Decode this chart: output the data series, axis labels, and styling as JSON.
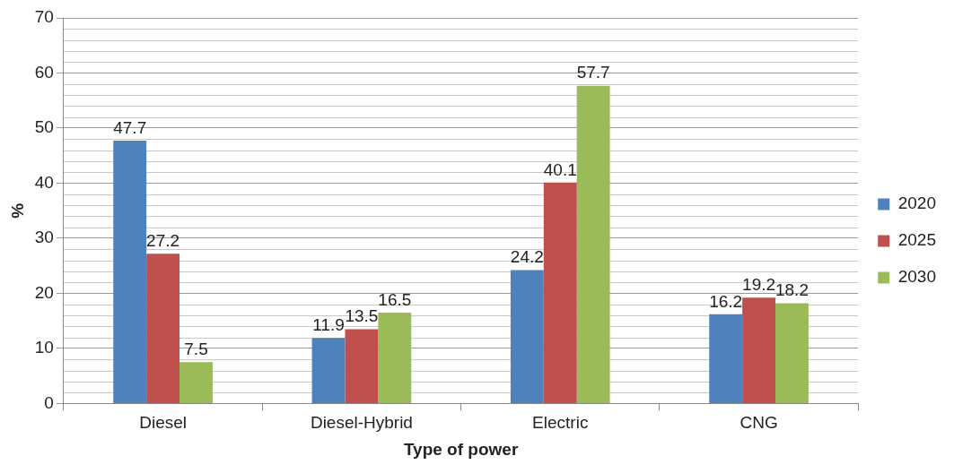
{
  "chart_data": {
    "type": "bar",
    "xlabel": "Type of power",
    "ylabel": "%",
    "categories": [
      "Diesel",
      "Diesel-Hybrid",
      "Electric",
      "CNG"
    ],
    "series": [
      {
        "name": "2020",
        "color": "#4f81bd",
        "values": [
          47.7,
          11.9,
          24.2,
          16.2
        ]
      },
      {
        "name": "2025",
        "color": "#c0504d",
        "values": [
          27.2,
          13.5,
          40.1,
          19.2
        ]
      },
      {
        "name": "2030",
        "color": "#9bbb59",
        "values": [
          7.5,
          16.5,
          57.7,
          18.2
        ]
      }
    ],
    "ylim": [
      0,
      70
    ],
    "yticks": [
      0,
      10,
      20,
      30,
      40,
      50,
      60,
      70
    ],
    "grid": true,
    "legend": "right",
    "data_labels": true
  }
}
